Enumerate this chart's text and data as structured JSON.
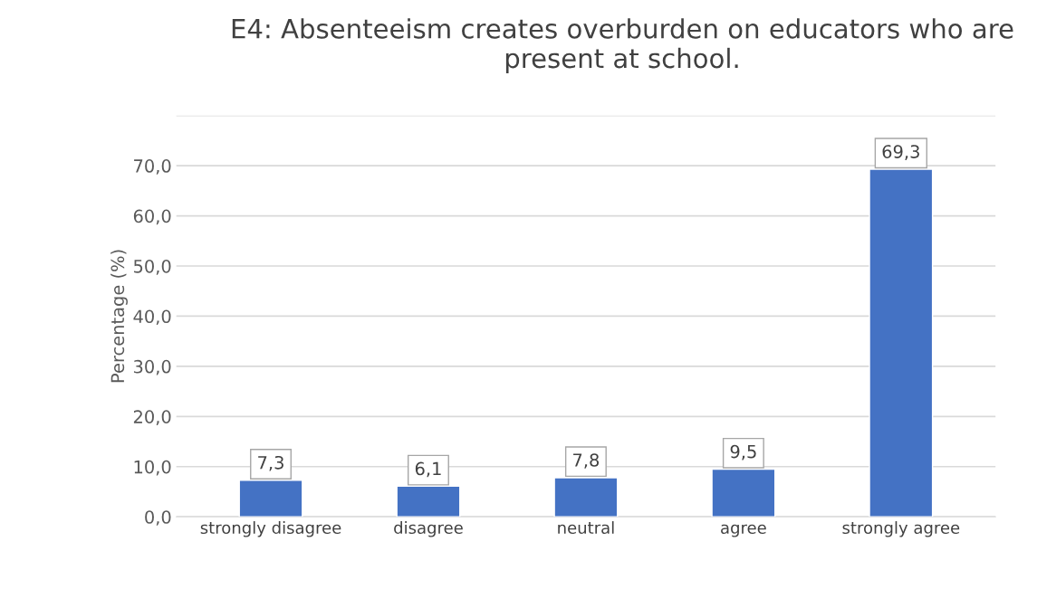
{
  "chart_data": {
    "type": "bar",
    "title": "E4: Absenteeism creates overburden on educators who are present at school.",
    "ylabel": "Percentage (%)",
    "categories": [
      "strongly disagree",
      "disagree",
      "neutral",
      "agree",
      "strongly agree"
    ],
    "values": [
      7.3,
      6.1,
      7.8,
      9.5,
      69.3
    ],
    "color": "#4472c4",
    "value_labels": [
      "7,3",
      "6,1",
      "7,8",
      "9,5",
      "69,3"
    ],
    "ylim": [
      0,
      80
    ],
    "yticks": [
      {
        "value": 0,
        "label": "0,0"
      },
      {
        "value": 10,
        "label": "10,0"
      },
      {
        "value": 20,
        "label": "20,0"
      },
      {
        "value": 30,
        "label": "30,0"
      },
      {
        "value": 40,
        "label": "40,0"
      },
      {
        "value": 50,
        "label": "50,0"
      },
      {
        "value": 60,
        "label": "60,0"
      },
      {
        "value": 70,
        "label": "70,0"
      },
      {
        "value": 80,
        "label": null
      }
    ],
    "grid": "y",
    "legend": false
  }
}
